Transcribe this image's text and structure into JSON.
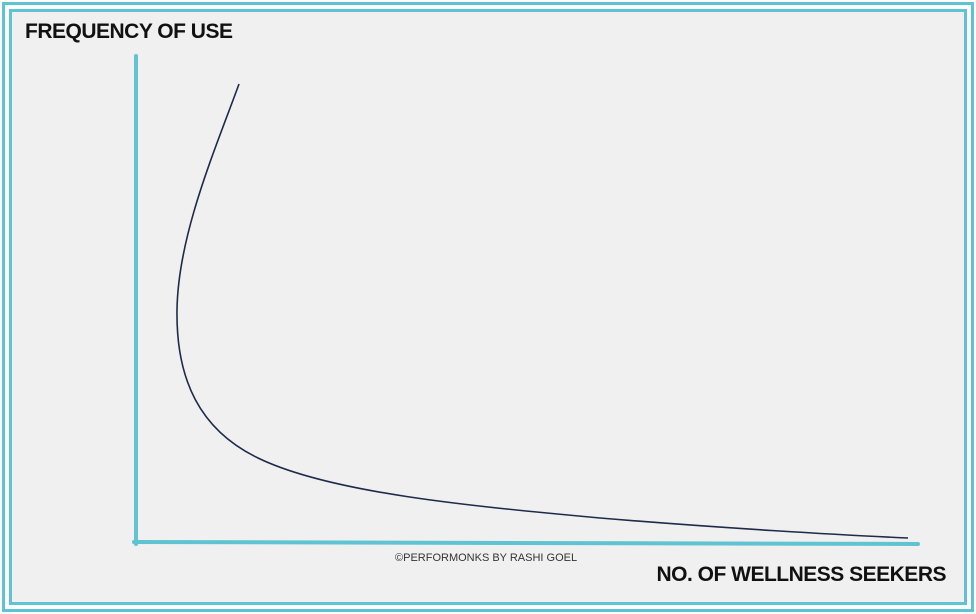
{
  "diagram": {
    "y_axis_label": "FREQUENCY OF USE",
    "x_axis_label": "NO. OF WELLNESS SEEKERS",
    "credit": "©PERFORMONKS BY RASHI GOEL",
    "axis_color": "#5fc3d1",
    "curve_color": "#1e2a4a",
    "border_color": "#5fc3d1",
    "background_color": "#f0f0f0"
  }
}
